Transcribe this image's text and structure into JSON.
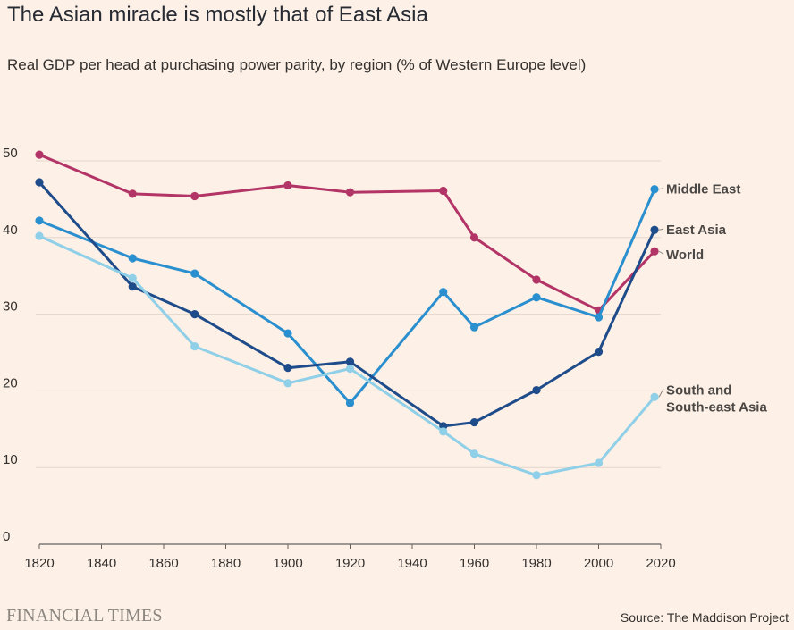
{
  "title": "The Asian miracle is mostly that of East Asia",
  "subtitle": "Real GDP per head at purchasing power parity, by region (% of Western Europe level)",
  "footer": {
    "brand": "FINANCIAL TIMES",
    "source": "Source: The Maddison Project"
  },
  "colors": {
    "background": "#fdf0e6",
    "grid": "#e3d6cc",
    "axis": "#66605c",
    "text": "#33302e"
  },
  "chart_data": {
    "type": "line",
    "title": "The Asian miracle is mostly that of East Asia",
    "subtitle": "Real GDP per head at purchasing power parity, by region (% of Western Europe level)",
    "xlabel": "",
    "ylabel": "",
    "xlim": [
      1820,
      2018
    ],
    "ylim": [
      0,
      50
    ],
    "xticks": [
      1820,
      1840,
      1860,
      1880,
      1900,
      1920,
      1940,
      1960,
      1980,
      2000,
      2020
    ],
    "yticks": [
      0,
      10,
      20,
      30,
      40,
      50
    ],
    "grid": true,
    "legend": "direct labels at right end of lines",
    "series": [
      {
        "name": "World",
        "color": "#b33466",
        "label_lines": [
          "World"
        ],
        "points": [
          [
            1820,
            50.8
          ],
          [
            1850,
            45.7
          ],
          [
            1870,
            45.4
          ],
          [
            1900,
            46.8
          ],
          [
            1920,
            45.9
          ],
          [
            1950,
            46.1
          ],
          [
            1960,
            40.0
          ],
          [
            1980,
            34.5
          ],
          [
            2000,
            30.5
          ],
          [
            2018,
            38.2
          ]
        ]
      },
      {
        "name": "Middle East",
        "color": "#2a8fcf",
        "label_lines": [
          "Middle East"
        ],
        "points": [
          [
            1820,
            42.2
          ],
          [
            1850,
            37.3
          ],
          [
            1870,
            35.3
          ],
          [
            1900,
            27.5
          ],
          [
            1920,
            18.4
          ],
          [
            1950,
            32.9
          ],
          [
            1960,
            28.3
          ],
          [
            1980,
            32.2
          ],
          [
            2000,
            29.6
          ],
          [
            2018,
            46.3
          ]
        ]
      },
      {
        "name": "East Asia",
        "color": "#1e4b8a",
        "label_lines": [
          "East Asia"
        ],
        "points": [
          [
            1820,
            47.2
          ],
          [
            1850,
            33.6
          ],
          [
            1870,
            30.0
          ],
          [
            1900,
            23.0
          ],
          [
            1920,
            23.8
          ],
          [
            1950,
            15.4
          ],
          [
            1960,
            15.9
          ],
          [
            1980,
            20.1
          ],
          [
            2000,
            25.1
          ],
          [
            2018,
            41.0
          ]
        ]
      },
      {
        "name": "South and South-east Asia",
        "color": "#8fd0e8",
        "label_lines": [
          "South and",
          "South-east Asia"
        ],
        "points": [
          [
            1820,
            40.2
          ],
          [
            1850,
            34.7
          ],
          [
            1870,
            25.8
          ],
          [
            1900,
            21.0
          ],
          [
            1920,
            22.9
          ],
          [
            1950,
            14.7
          ],
          [
            1960,
            11.8
          ],
          [
            1980,
            9.0
          ],
          [
            2000,
            10.6
          ],
          [
            2018,
            19.2
          ]
        ]
      }
    ]
  }
}
